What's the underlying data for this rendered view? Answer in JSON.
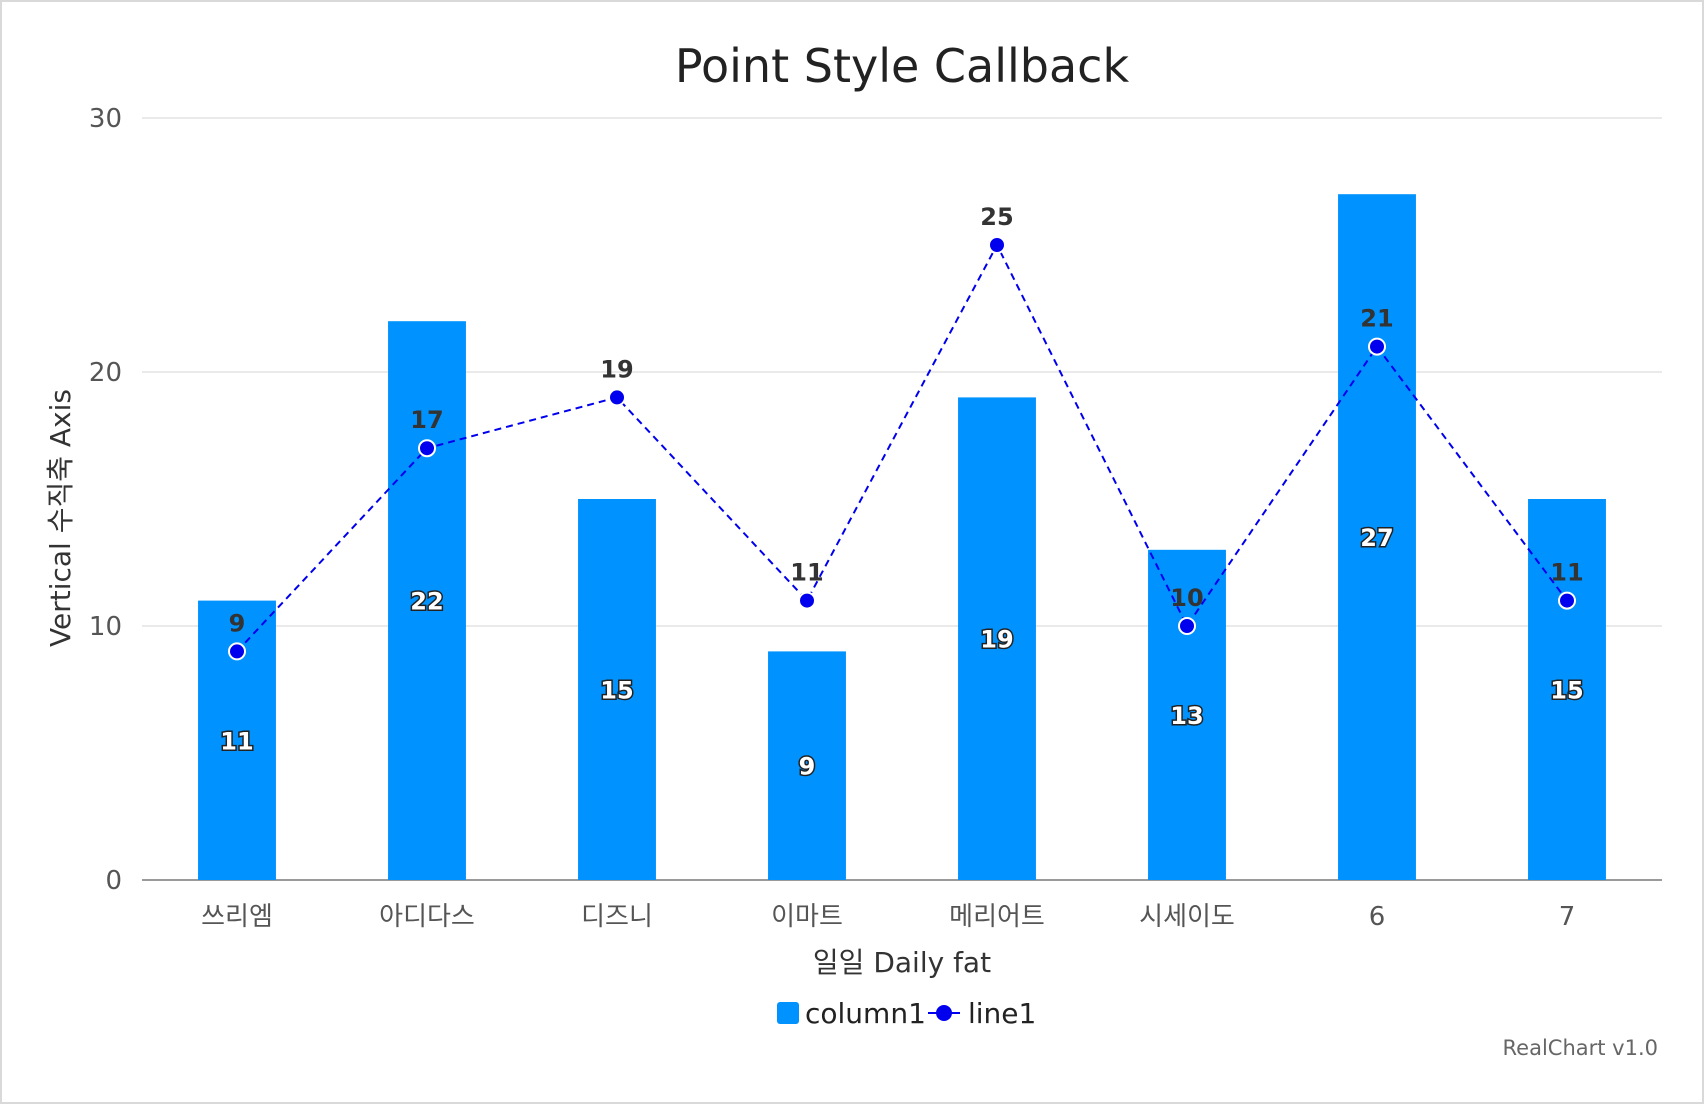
{
  "chart_data": {
    "type": "bar",
    "title": "Point Style Callback",
    "xlabel": "일일 Daily fat",
    "ylabel": "Vertical 수직축 Axis",
    "categories": [
      "쓰리엠",
      "아디다스",
      "디즈니",
      "이마트",
      "메리어트",
      "시세이도",
      "6",
      "7"
    ],
    "ylim": [
      0,
      30
    ],
    "yticks": [
      0,
      10,
      20,
      30
    ],
    "grid": true,
    "legend_position": "bottom",
    "series": [
      {
        "name": "column1",
        "type": "bar",
        "color": "#0093ff",
        "values": [
          11,
          22,
          15,
          9,
          19,
          13,
          27,
          15
        ]
      },
      {
        "name": "line1",
        "type": "line",
        "style": "dashed",
        "marker": "circle",
        "color": "#0000ee",
        "values": [
          9,
          17,
          19,
          11,
          25,
          10,
          21,
          11
        ]
      }
    ]
  },
  "credit": "RealChart v1.0"
}
